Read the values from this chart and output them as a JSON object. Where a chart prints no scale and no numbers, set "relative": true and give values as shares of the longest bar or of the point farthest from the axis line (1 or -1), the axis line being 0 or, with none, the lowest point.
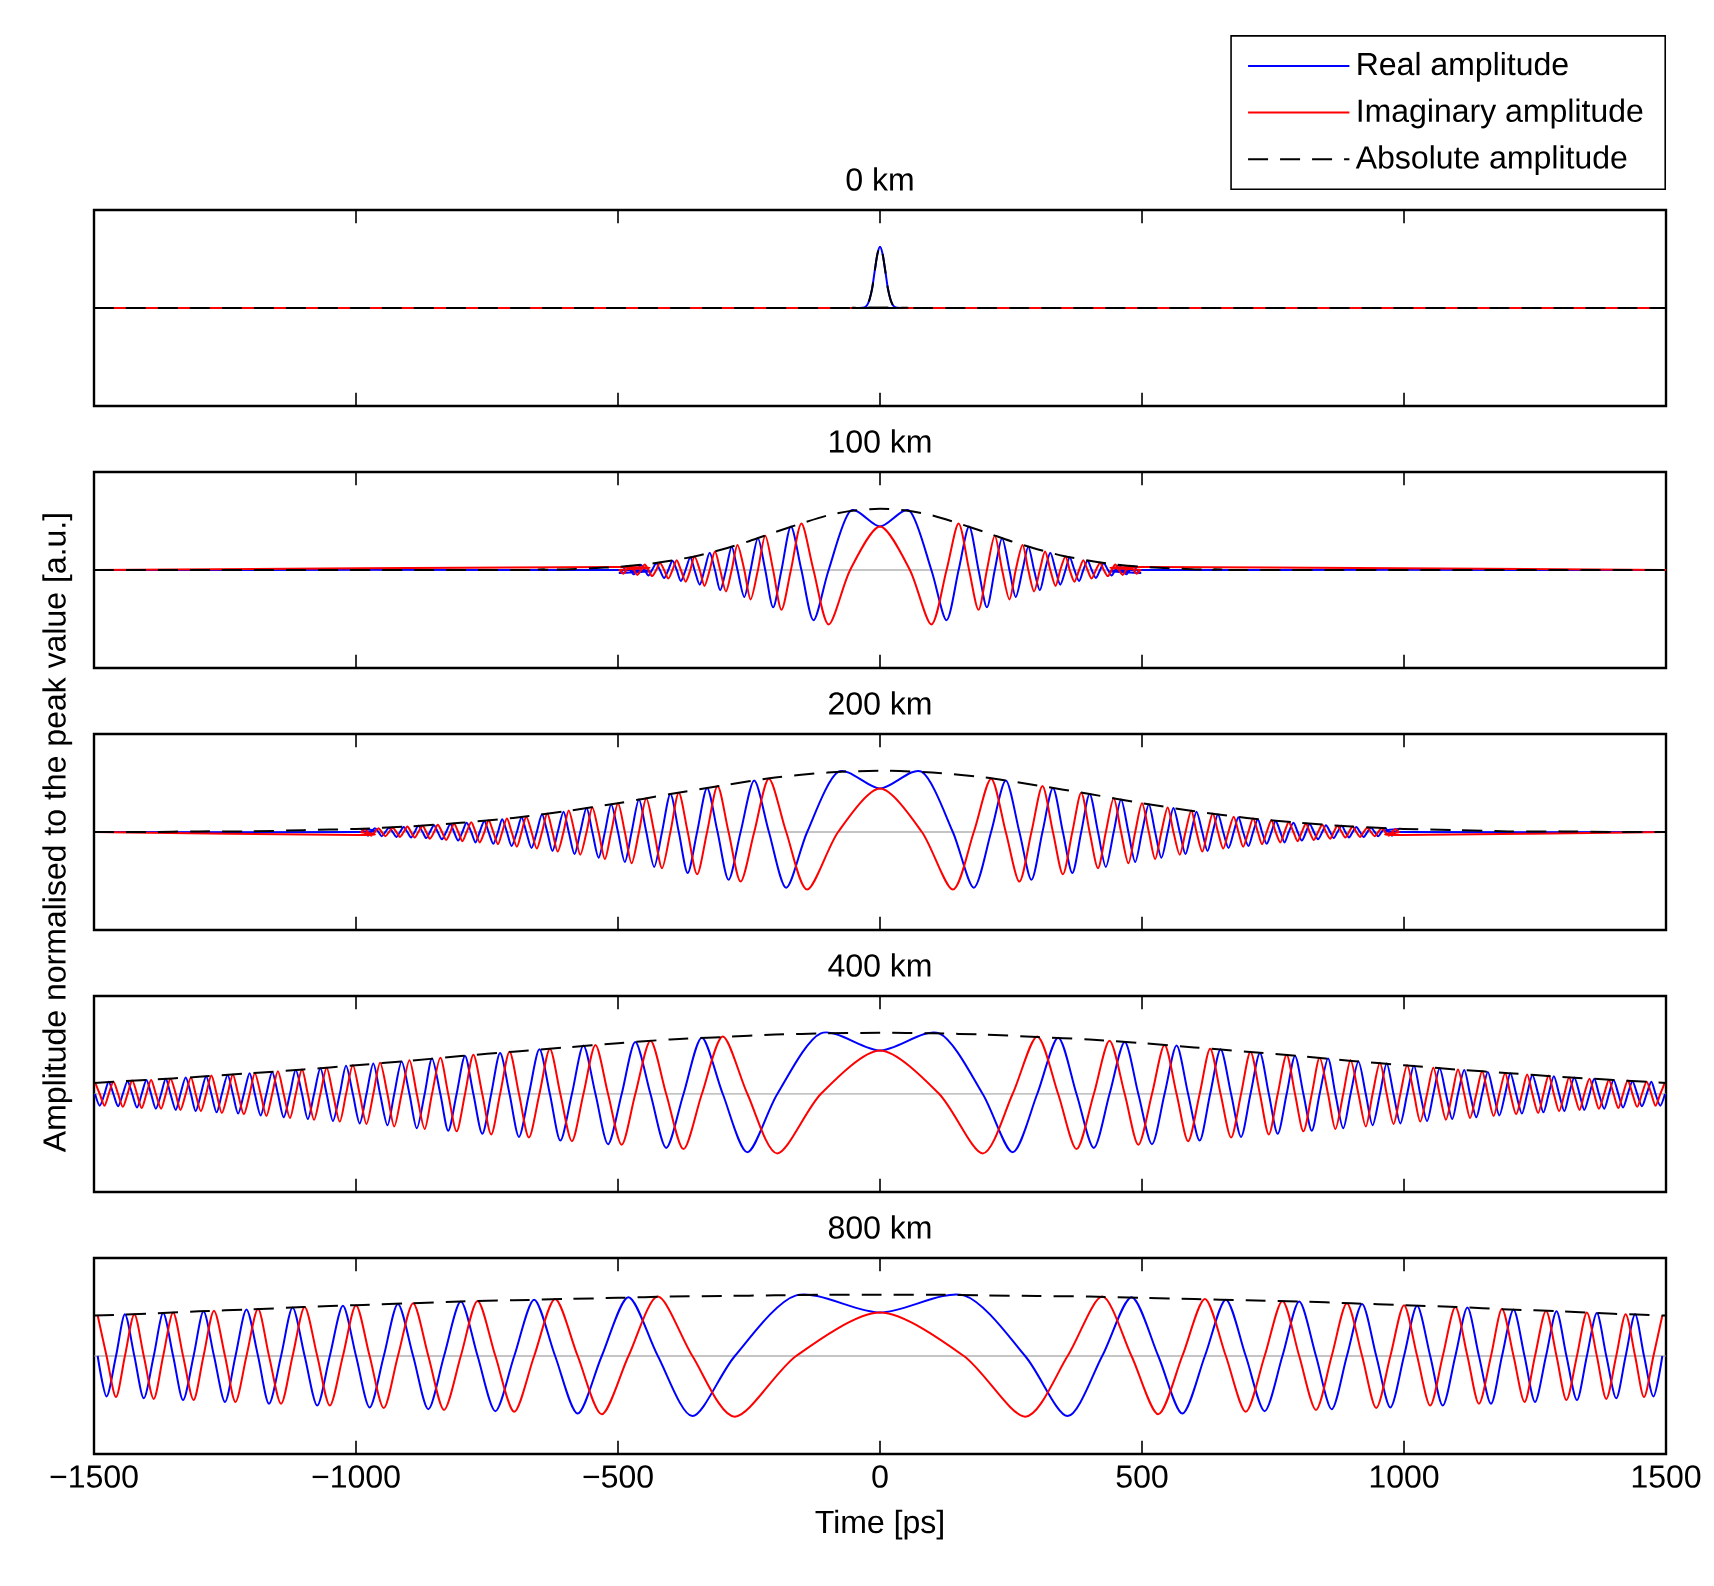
{
  "chart_data": [
    {
      "type": "line",
      "title": "0 km",
      "relative": true,
      "xlim": [
        -1500,
        1500
      ],
      "xticks": [
        -1500,
        -1000,
        -500,
        0,
        500,
        1000,
        1500
      ],
      "tick_labels": false,
      "legend": "top right",
      "x": [
        -1500,
        -40,
        -30,
        -25,
        -20,
        -15,
        -10,
        -5,
        0,
        5,
        10,
        15,
        20,
        25,
        30,
        40,
        1500
      ],
      "series": [
        {
          "name": "Real amplitude",
          "color": "#0000ff",
          "values": [
            null,
            0,
            0.01,
            0.04,
            0.14,
            0.32,
            0.61,
            0.88,
            1,
            0.88,
            0.61,
            0.32,
            0.14,
            0.04,
            0.01,
            0,
            null
          ]
        },
        {
          "name": "Imaginary amplitude",
          "color": "#ff0000",
          "values": [
            0,
            0,
            null,
            null,
            null,
            null,
            null,
            null,
            null,
            null,
            null,
            null,
            null,
            null,
            null,
            0,
            0
          ]
        },
        {
          "name": "Absolute amplitude",
          "color": "#000000",
          "line_style": "dashed",
          "values": [
            0,
            0,
            0.01,
            0.04,
            0.14,
            0.32,
            0.61,
            0.88,
            1,
            0.88,
            0.61,
            0.32,
            0.14,
            0.04,
            0.01,
            0,
            0
          ]
        }
      ]
    },
    {
      "type": "line",
      "title": "100 km",
      "relative": true,
      "xlim": [
        -1500,
        1500
      ],
      "xticks": [
        -1500,
        -1000,
        -500,
        0,
        500,
        1000,
        1500
      ],
      "tick_labels": false,
      "x": [
        -1500,
        -503,
        -497,
        -490,
        -484,
        -477,
        -470,
        -463,
        -456,
        -449,
        -442,
        -435,
        -427,
        -420,
        -412,
        -404,
        -396,
        -388,
        -380,
        -371,
        -362,
        -354,
        -344,
        -335,
        -325,
        -315,
        -305,
        -294,
        -283,
        -272,
        -259,
        -247,
        -233,
        -219,
        -204,
        -188,
        -170,
        -150,
        -127,
        -98,
        -57,
        0,
        57,
        98,
        127,
        150,
        170,
        188,
        204,
        219,
        233,
        247,
        259,
        272,
        283,
        294,
        305,
        315,
        325,
        335,
        344,
        354,
        362,
        371,
        380,
        388,
        396,
        404,
        412,
        420,
        427,
        435,
        442,
        449,
        456,
        463,
        470,
        477,
        484,
        490,
        497,
        503,
        1500
      ],
      "series": [
        {
          "color": "#0000ff",
          "values": [
            0,
            0,
            -0.05,
            0,
            0.06,
            0,
            -0.07,
            0,
            0.08,
            0,
            -0.09,
            0,
            0.11,
            0,
            -0.13,
            0,
            0.15,
            0,
            -0.18,
            0,
            0.21,
            0,
            -0.24,
            0,
            0.28,
            0,
            -0.33,
            0,
            0.38,
            0,
            -0.44,
            0,
            0.52,
            0,
            -0.61,
            0,
            0.71,
            0,
            -0.82,
            0,
            0.96,
            0.71,
            0.96,
            0,
            -0.82,
            0,
            0.71,
            0,
            -0.61,
            0,
            0.52,
            0,
            -0.44,
            0,
            0.38,
            0,
            -0.33,
            0,
            0.28,
            0,
            -0.24,
            0,
            0.21,
            0,
            -0.18,
            0,
            0.15,
            0,
            -0.13,
            0,
            0.11,
            0,
            -0.09,
            0,
            0.08,
            0,
            -0.07,
            0,
            0.06,
            0,
            -0.05,
            0,
            0
          ]
        },
        {
          "color": "#ff0000",
          "values": [
            0,
            0.05,
            0,
            -0.06,
            0,
            0.07,
            0,
            -0.08,
            0,
            0.09,
            0,
            -0.1,
            0,
            0.12,
            0,
            -0.14,
            0,
            0.16,
            0,
            -0.19,
            0,
            0.22,
            0,
            -0.26,
            0,
            0.3,
            0,
            -0.35,
            0,
            0.41,
            0,
            -0.48,
            0,
            0.56,
            0,
            -0.65,
            0,
            0.76,
            0,
            -0.89,
            0,
            0.71,
            0,
            -0.89,
            0,
            0.76,
            0,
            -0.65,
            0,
            0.56,
            0,
            -0.48,
            0,
            0.41,
            0,
            -0.35,
            0,
            0.3,
            0,
            -0.26,
            0,
            0.22,
            0,
            -0.19,
            0,
            0.16,
            0,
            -0.14,
            0,
            0.12,
            0,
            -0.1,
            0,
            0.09,
            0,
            -0.08,
            0,
            0.07,
            0,
            -0.06,
            0,
            0.05,
            0
          ]
        },
        {
          "color": "#000000",
          "line_style": "dashed",
          "x": [
            -1500,
            -700,
            -650,
            -600,
            -550,
            -500,
            -450,
            -400,
            -350,
            -300,
            -250,
            -200,
            -150,
            -100,
            -50,
            0,
            50,
            100,
            150,
            200,
            250,
            300,
            350,
            400,
            450,
            500,
            550,
            600,
            650,
            700,
            1500
          ],
          "values": [
            0,
            0,
            0.01,
            0.01,
            0.03,
            0.05,
            0.09,
            0.15,
            0.23,
            0.34,
            0.47,
            0.62,
            0.76,
            0.89,
            0.97,
            1,
            0.97,
            0.89,
            0.76,
            0.62,
            0.47,
            0.34,
            0.23,
            0.15,
            0.09,
            0.05,
            0.03,
            0.01,
            0.01,
            0,
            0
          ]
        }
      ]
    },
    {
      "type": "line",
      "title": "200 km",
      "ylabel": "Amplitude normalised to the peak value [a.u.]",
      "relative": true,
      "xlim": [
        -1500,
        1500
      ],
      "xticks": [
        -1500,
        -1000,
        -500,
        0,
        500,
        1000,
        1500
      ],
      "tick_labels": false,
      "x": [
        -1500,
        -997,
        -990,
        -984,
        -977,
        -971,
        -964,
        -957,
        -951,
        -944,
        -937,
        -930,
        -923,
        -916,
        -909,
        -902,
        -895,
        -888,
        -881,
        -873,
        -866,
        -859,
        -851,
        -844,
        -836,
        -828,
        -820,
        -813,
        -805,
        -797,
        -789,
        -780,
        -772,
        -764,
        -755,
        -747,
        -738,
        -729,
        -721,
        -712,
        -703,
        -693,
        -684,
        -675,
        -665,
        -655,
        -645,
        -635,
        -625,
        -615,
        -604,
        -594,
        -583,
        -572,
        -560,
        -549,
        -537,
        -525,
        -513,
        -500,
        -487,
        -474,
        -460,
        -446,
        -431,
        -416,
        -400,
        -384,
        -367,
        -349,
        -330,
        -310,
        -289,
        -266,
        -240,
        -212,
        -179,
        -139,
        -80,
        0,
        80,
        139,
        179,
        212,
        240,
        266,
        289,
        310,
        330,
        349,
        367,
        384,
        400,
        416,
        431,
        446,
        460,
        474,
        487,
        500,
        513,
        525,
        537,
        549,
        560,
        572,
        583,
        594,
        604,
        615,
        625,
        635,
        645,
        655,
        665,
        675,
        684,
        693,
        703,
        712,
        721,
        729,
        738,
        747,
        755,
        764,
        772,
        780,
        789,
        797,
        805,
        813,
        820,
        828,
        836,
        844,
        851,
        859,
        866,
        873,
        881,
        888,
        895,
        902,
        909,
        916,
        923,
        930,
        937,
        944,
        951,
        957,
        964,
        971,
        977,
        984,
        990,
        997,
        1500
      ],
      "series": [
        {
          "color": "#0000ff",
          "values": [
            0,
            0,
            0.05,
            0,
            -0.06,
            0,
            0.06,
            0,
            -0.07,
            0,
            0.07,
            0,
            -0.08,
            0,
            0.08,
            0,
            -0.09,
            0,
            0.1,
            0,
            -0.1,
            0,
            0.11,
            0,
            -0.12,
            0,
            0.13,
            0,
            -0.14,
            0,
            0.15,
            0,
            -0.17,
            0,
            0.18,
            0,
            -0.19,
            0,
            0.21,
            0,
            -0.23,
            0,
            0.24,
            0,
            -0.26,
            0,
            0.29,
            0,
            -0.31,
            0,
            0.33,
            0,
            -0.36,
            0,
            0.39,
            0,
            -0.42,
            0,
            0.45,
            0,
            -0.49,
            0,
            0.53,
            0,
            -0.57,
            0,
            0.62,
            0,
            -0.67,
            0,
            0.72,
            0,
            -0.78,
            0,
            0.84,
            0,
            -0.91,
            0,
            0.98,
            0.71,
            0.98,
            0,
            -0.91,
            0,
            0.84,
            0,
            -0.78,
            0,
            0.72,
            0,
            -0.67,
            0,
            0.62,
            0,
            -0.57,
            0,
            0.53,
            0,
            -0.49,
            0,
            0.45,
            0,
            -0.42,
            0,
            0.39,
            0,
            -0.36,
            0,
            0.33,
            0,
            -0.31,
            0,
            0.29,
            0,
            -0.26,
            0,
            0.24,
            0,
            -0.23,
            0,
            0.21,
            0,
            -0.19,
            0,
            0.18,
            0,
            -0.17,
            0,
            0.15,
            0,
            -0.14,
            0,
            0.13,
            0,
            -0.12,
            0,
            0.11,
            0,
            -0.1,
            0,
            0.1,
            0,
            -0.09,
            0,
            0.08,
            0,
            -0.08,
            0,
            0.07,
            0,
            -0.07,
            0,
            0.06,
            0,
            -0.06,
            0,
            0.05,
            0,
            0
          ]
        },
        {
          "color": "#ff0000",
          "values": [
            0,
            -0.05,
            0,
            0.05,
            0,
            -0.06,
            0,
            0.06,
            0,
            -0.07,
            0,
            0.07,
            0,
            -0.08,
            0,
            0.09,
            0,
            -0.09,
            0,
            0.1,
            0,
            -0.11,
            0,
            0.12,
            0,
            -0.13,
            0,
            0.14,
            0,
            -0.15,
            0,
            0.16,
            0,
            -0.17,
            0,
            0.19,
            0,
            -0.2,
            0,
            0.22,
            0,
            -0.24,
            0,
            0.25,
            0,
            -0.27,
            0,
            0.3,
            0,
            -0.32,
            0,
            0.35,
            0,
            -0.37,
            0,
            0.4,
            0,
            -0.44,
            0,
            0.47,
            0,
            -0.51,
            0,
            0.55,
            0,
            -0.59,
            0,
            0.64,
            0,
            -0.69,
            0,
            0.75,
            0,
            -0.81,
            0,
            0.87,
            0,
            -0.94,
            0,
            0.71,
            0,
            -0.94,
            0,
            0.87,
            0,
            -0.81,
            0,
            0.75,
            0,
            -0.69,
            0,
            0.64,
            0,
            -0.59,
            0,
            0.55,
            0,
            -0.51,
            0,
            0.47,
            0,
            -0.44,
            0,
            0.4,
            0,
            -0.37,
            0,
            0.35,
            0,
            -0.32,
            0,
            0.3,
            0,
            -0.27,
            0,
            0.25,
            0,
            -0.24,
            0,
            0.22,
            0,
            -0.2,
            0,
            0.19,
            0,
            -0.17,
            0,
            0.16,
            0,
            -0.15,
            0,
            0.14,
            0,
            -0.13,
            0,
            0.12,
            0,
            -0.11,
            0,
            0.1,
            0,
            -0.09,
            0,
            0.09,
            0,
            -0.08,
            0,
            0.07,
            0,
            -0.07,
            0,
            0.06,
            0,
            -0.06,
            0,
            0.05,
            0,
            -0.05,
            0
          ]
        },
        {
          "color": "#000000",
          "line_style": "dashed",
          "x": [
            -1500,
            -1400,
            -1300,
            -1200,
            -1100,
            -1000,
            -900,
            -800,
            -700,
            -600,
            -500,
            -400,
            -300,
            -200,
            -100,
            0,
            100,
            200,
            300,
            400,
            500,
            600,
            700,
            800,
            900,
            1000,
            1100,
            1200,
            1300,
            1400,
            1500
          ],
          "values": [
            0,
            0,
            0.01,
            0.01,
            0.03,
            0.05,
            0.09,
            0.15,
            0.23,
            0.34,
            0.47,
            0.62,
            0.76,
            0.89,
            0.97,
            1,
            0.97,
            0.89,
            0.76,
            0.62,
            0.47,
            0.34,
            0.23,
            0.15,
            0.09,
            0.05,
            0.03,
            0.01,
            0.01,
            0,
            0
          ]
        }
      ]
    },
    {
      "type": "line",
      "title": "400 km",
      "relative": true,
      "xlim": [
        -1500,
        1500
      ],
      "xticks": [
        -1500,
        -1000,
        -500,
        0,
        500,
        1000,
        1500
      ],
      "tick_labels": false,
      "x": [
        -1498,
        -1489,
        -1480,
        -1472,
        -1463,
        -1454,
        -1445,
        -1436,
        -1427,
        -1418,
        -1409,
        -1400,
        -1391,
        -1382,
        -1372,
        -1363,
        -1354,
        -1344,
        -1335,
        -1325,
        -1315,
        -1306,
        -1296,
        -1286,
        -1276,
        -1266,
        -1256,
        -1245,
        -1235,
        -1225,
        -1214,
        -1203,
        -1193,
        -1182,
        -1171,
        -1160,
        -1149,
        -1138,
        -1126,
        -1115,
        -1103,
        -1092,
        -1080,
        -1068,
        -1056,
        -1044,
        -1031,
        -1019,
        -1006,
        -993,
        -980,
        -967,
        -954,
        -940,
        -927,
        -913,
        -898,
        -884,
        -869,
        -855,
        -839,
        -824,
        -808,
        -792,
        -776,
        -759,
        -742,
        -725,
        -707,
        -689,
        -670,
        -650,
        -630,
        -610,
        -588,
        -566,
        -543,
        -519,
        -493,
        -467,
        -438,
        -408,
        -375,
        -340,
        -300,
        -253,
        -196,
        -113,
        0,
        113,
        196,
        253,
        300,
        340,
        375,
        408,
        438,
        467,
        493,
        519,
        543,
        566,
        588,
        610,
        630,
        650,
        670,
        689,
        707,
        725,
        742,
        759,
        776,
        792,
        808,
        824,
        839,
        855,
        869,
        884,
        898,
        913,
        927,
        940,
        954,
        967,
        980,
        993,
        1006,
        1019,
        1031,
        1044,
        1056,
        1068,
        1080,
        1092,
        1103,
        1115,
        1126,
        1138,
        1149,
        1160,
        1171,
        1182,
        1193,
        1203,
        1214,
        1225,
        1235,
        1245,
        1256,
        1266,
        1276,
        1286,
        1296,
        1306,
        1315,
        1325,
        1335,
        1344,
        1354,
        1363,
        1372,
        1382,
        1391,
        1400,
        1409,
        1418,
        1427,
        1436,
        1445,
        1454,
        1463,
        1472,
        1480,
        1489,
        1498
      ],
      "series": [
        {
          "color": "#0000ff",
          "values": [
            0,
            -0.19,
            0,
            0.2,
            0,
            -0.2,
            0,
            0.21,
            0,
            -0.22,
            0,
            0.23,
            0,
            -0.24,
            0,
            0.25,
            0,
            -0.26,
            0,
            0.27,
            0,
            -0.28,
            0,
            0.29,
            0,
            -0.3,
            0,
            0.31,
            0,
            -0.32,
            0,
            0.34,
            0,
            -0.35,
            0,
            0.36,
            0,
            -0.38,
            0,
            0.39,
            0,
            -0.41,
            0,
            0.42,
            0,
            -0.44,
            0,
            0.46,
            0,
            -0.48,
            0,
            0.5,
            0,
            -0.51,
            0,
            0.53,
            0,
            -0.56,
            0,
            0.58,
            0,
            -0.6,
            0,
            0.62,
            0,
            -0.65,
            0,
            0.67,
            0,
            -0.7,
            0,
            0.73,
            0,
            -0.76,
            0,
            0.79,
            0,
            -0.82,
            0,
            0.85,
            0,
            -0.88,
            0,
            0.92,
            0,
            -0.95,
            0,
            0.99,
            0.71,
            0.99,
            0,
            -0.95,
            0,
            0.92,
            0,
            -0.88,
            0,
            0.85,
            0,
            -0.82,
            0,
            0.79,
            0,
            -0.76,
            0,
            0.73,
            0,
            -0.7,
            0,
            0.67,
            0,
            -0.65,
            0,
            0.62,
            0,
            -0.6,
            0,
            0.58,
            0,
            -0.56,
            0,
            0.53,
            0,
            -0.51,
            0,
            0.5,
            0,
            -0.48,
            0,
            0.46,
            0,
            -0.44,
            0,
            0.42,
            0,
            -0.41,
            0,
            0.39,
            0,
            -0.38,
            0,
            0.36,
            0,
            -0.35,
            0,
            0.34,
            0,
            -0.32,
            0,
            0.31,
            0,
            -0.3,
            0,
            0.29,
            0,
            -0.28,
            0,
            0.27,
            0,
            -0.26,
            0,
            0.25,
            0,
            -0.24,
            0,
            0.23,
            0,
            -0.22,
            0,
            0.21,
            0,
            -0.2,
            0,
            0.2,
            0,
            -0.19,
            0
          ]
        },
        {
          "color": "#ff0000",
          "values": [
            0.19,
            0,
            -0.19,
            0,
            0.2,
            0,
            -0.21,
            0,
            0.22,
            0,
            -0.23,
            0,
            0.23,
            0,
            -0.24,
            0,
            0.25,
            0,
            -0.26,
            0,
            0.27,
            0,
            -0.28,
            0,
            0.3,
            0,
            -0.31,
            0,
            0.32,
            0,
            -0.33,
            0,
            0.34,
            0,
            -0.36,
            0,
            0.37,
            0,
            -0.39,
            0,
            0.4,
            0,
            -0.42,
            0,
            0.43,
            0,
            -0.45,
            0,
            0.47,
            0,
            -0.49,
            0,
            0.51,
            0,
            -0.53,
            0,
            0.55,
            0,
            -0.57,
            0,
            0.59,
            0,
            -0.61,
            0,
            0.64,
            0,
            -0.66,
            0,
            0.69,
            0,
            -0.71,
            0,
            0.74,
            0,
            -0.77,
            0,
            0.8,
            0,
            -0.83,
            0,
            0.87,
            0,
            -0.9,
            0,
            0.94,
            0,
            -0.97,
            0,
            0.71,
            0,
            -0.97,
            0,
            0.94,
            0,
            -0.9,
            0,
            0.87,
            0,
            -0.83,
            0,
            0.8,
            0,
            -0.77,
            0,
            0.74,
            0,
            -0.71,
            0,
            0.69,
            0,
            -0.66,
            0,
            0.64,
            0,
            -0.61,
            0,
            0.59,
            0,
            -0.57,
            0,
            0.55,
            0,
            -0.53,
            0,
            0.51,
            0,
            -0.49,
            0,
            0.47,
            0,
            -0.45,
            0,
            0.43,
            0,
            -0.42,
            0,
            0.4,
            0,
            -0.39,
            0,
            0.37,
            0,
            -0.36,
            0,
            0.34,
            0,
            -0.33,
            0,
            0.32,
            0,
            -0.31,
            0,
            0.3,
            0,
            -0.28,
            0,
            0.27,
            0,
            -0.26,
            0,
            0.25,
            0,
            -0.24,
            0,
            0.23,
            0,
            -0.23,
            0,
            0.22,
            0,
            -0.21,
            0,
            0.2,
            0,
            -0.19,
            0,
            0.19
          ]
        },
        {
          "color": "#000000",
          "line_style": "dashed",
          "x": [
            -1500,
            -1400,
            -1300,
            -1200,
            -1100,
            -1000,
            -900,
            -800,
            -700,
            -600,
            -500,
            -400,
            -300,
            -200,
            -100,
            0,
            100,
            200,
            300,
            400,
            500,
            600,
            700,
            800,
            900,
            1000,
            1100,
            1200,
            1300,
            1400,
            1500
          ],
          "values": [
            0.18,
            0.23,
            0.28,
            0.34,
            0.4,
            0.47,
            0.54,
            0.62,
            0.69,
            0.76,
            0.83,
            0.89,
            0.93,
            0.97,
            0.99,
            1,
            0.99,
            0.97,
            0.93,
            0.89,
            0.83,
            0.76,
            0.69,
            0.62,
            0.54,
            0.47,
            0.4,
            0.34,
            0.28,
            0.23,
            0.18
          ]
        }
      ]
    },
    {
      "type": "line",
      "title": "800 km",
      "xlabel": "Time [ps]",
      "relative": true,
      "xlim": [
        -1500,
        1500
      ],
      "xticks": [
        {
          "value": -1500,
          "label": "−1500"
        },
        {
          "value": -1000,
          "label": "−1000"
        },
        {
          "value": -500,
          "label": "−500"
        },
        0,
        500,
        1000,
        1500
      ],
      "tick_labels": "x",
      "x": [
        -1493,
        -1476,
        -1458,
        -1441,
        -1423,
        -1405,
        -1386,
        -1368,
        -1349,
        -1330,
        -1310,
        -1291,
        -1271,
        -1250,
        -1230,
        -1209,
        -1187,
        -1166,
        -1143,
        -1121,
        -1098,
        -1074,
        -1050,
        -1025,
        -1000,
        -974,
        -947,
        -920,
        -891,
        -862,
        -832,
        -800,
        -768,
        -734,
        -698,
        -660,
        -620,
        -577,
        -531,
        -480,
        -424,
        -358,
        -277,
        -160,
        0,
        160,
        277,
        358,
        424,
        480,
        531,
        577,
        620,
        660,
        698,
        734,
        768,
        800,
        832,
        862,
        891,
        920,
        947,
        974,
        1000,
        1025,
        1050,
        1074,
        1098,
        1121,
        1143,
        1166,
        1187,
        1209,
        1230,
        1250,
        1271,
        1291,
        1310,
        1330,
        1349,
        1368,
        1386,
        1405,
        1423,
        1441,
        1458,
        1476,
        1493
      ],
      "series": [
        {
          "color": "#0000ff",
          "values": [
            0,
            -0.66,
            0,
            0.68,
            0,
            -0.69,
            0,
            0.7,
            0,
            -0.72,
            0,
            0.73,
            0,
            -0.75,
            0,
            0.76,
            0,
            -0.78,
            0,
            0.79,
            0,
            -0.81,
            0,
            0.82,
            0,
            -0.84,
            0,
            0.85,
            0,
            -0.87,
            0,
            0.89,
            0,
            -0.9,
            0,
            0.92,
            0,
            -0.94,
            0,
            0.96,
            0,
            -0.98,
            0,
            0.99,
            0.71,
            0.99,
            0,
            -0.98,
            0,
            0.96,
            0,
            -0.94,
            0,
            0.92,
            0,
            -0.9,
            0,
            0.89,
            0,
            -0.87,
            0,
            0.85,
            0,
            -0.84,
            0,
            0.82,
            0,
            -0.81,
            0,
            0.79,
            0,
            -0.78,
            0,
            0.76,
            0,
            -0.75,
            0,
            0.73,
            0,
            -0.72,
            0,
            0.7,
            0,
            -0.69,
            0,
            0.68,
            0,
            -0.66,
            0
          ]
        },
        {
          "color": "#ff0000",
          "values": [
            0.66,
            0,
            -0.67,
            0,
            0.68,
            0,
            -0.7,
            0,
            0.71,
            0,
            -0.72,
            0,
            0.74,
            0,
            -0.75,
            0,
            0.77,
            0,
            -0.78,
            0,
            0.8,
            0,
            -0.81,
            0,
            0.83,
            0,
            -0.85,
            0,
            0.86,
            0,
            -0.88,
            0,
            0.9,
            0,
            -0.91,
            0,
            0.93,
            0,
            -0.95,
            0,
            0.97,
            0,
            -0.99,
            0,
            0.71,
            0,
            -0.99,
            0,
            0.97,
            0,
            -0.95,
            0,
            0.93,
            0,
            -0.91,
            0,
            0.9,
            0,
            -0.88,
            0,
            0.86,
            0,
            -0.85,
            0,
            0.83,
            0,
            -0.81,
            0,
            0.8,
            0,
            -0.78,
            0,
            0.77,
            0,
            -0.75,
            0,
            0.74,
            0,
            -0.72,
            0,
            0.71,
            0,
            -0.7,
            0,
            0.68,
            0,
            -0.67,
            0,
            0.66
          ]
        },
        {
          "color": "#000000",
          "line_style": "dashed",
          "x": [
            -1500,
            -1400,
            -1300,
            -1200,
            -1100,
            -1000,
            -900,
            -800,
            -700,
            -600,
            -500,
            -400,
            -300,
            -200,
            -100,
            0,
            100,
            200,
            300,
            400,
            500,
            600,
            700,
            800,
            900,
            1000,
            1100,
            1200,
            1300,
            1400,
            1500
          ],
          "values": [
            0.66,
            0.69,
            0.73,
            0.76,
            0.8,
            0.83,
            0.86,
            0.89,
            0.91,
            0.93,
            0.95,
            0.97,
            0.98,
            0.99,
            1,
            1,
            1,
            0.99,
            0.98,
            0.97,
            0.95,
            0.93,
            0.91,
            0.89,
            0.86,
            0.83,
            0.8,
            0.76,
            0.73,
            0.69,
            0.66
          ]
        }
      ]
    }
  ]
}
